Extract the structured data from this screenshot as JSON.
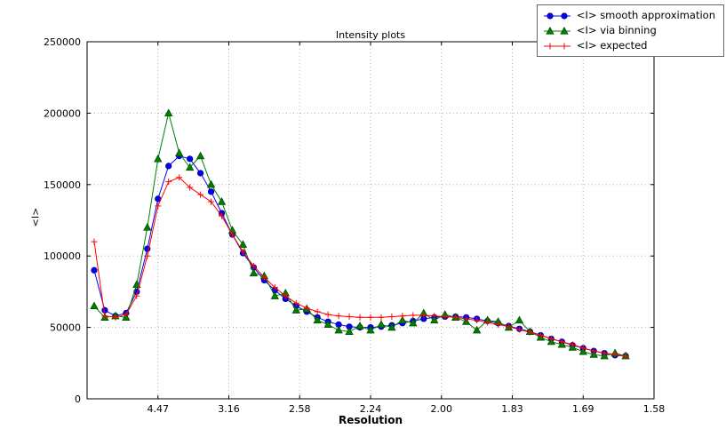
{
  "chart_data": {
    "type": "line",
    "title": "Intensity plots",
    "xlabel": "Resolution",
    "ylabel": "<I>",
    "grid": true,
    "legend_position": "upper right, outside top edge of axes",
    "axis_note": "x axis is linear in 1/d^2 from 0 to 0.4; tick labels give resolution d",
    "xlim": [
      0,
      0.4
    ],
    "ylim": [
      0,
      250000
    ],
    "x_ticks": [
      {
        "pos": 0.05,
        "label": "4.47"
      },
      {
        "pos": 0.1,
        "label": "3.16"
      },
      {
        "pos": 0.15,
        "label": "2.58"
      },
      {
        "pos": 0.2,
        "label": "2.24"
      },
      {
        "pos": 0.25,
        "label": "2.00"
      },
      {
        "pos": 0.3,
        "label": "1.83"
      },
      {
        "pos": 0.35,
        "label": "1.69"
      },
      {
        "pos": 0.4,
        "label": "1.58"
      }
    ],
    "y_ticks": [
      {
        "pos": 0,
        "label": "0"
      },
      {
        "pos": 50000,
        "label": "50000"
      },
      {
        "pos": 100000,
        "label": "100000"
      },
      {
        "pos": 150000,
        "label": "150000"
      },
      {
        "pos": 200000,
        "label": "200000"
      },
      {
        "pos": 250000,
        "label": "250000"
      }
    ],
    "x": [
      0.005,
      0.0125,
      0.02,
      0.0275,
      0.035,
      0.0425,
      0.05,
      0.0575,
      0.065,
      0.0725,
      0.08,
      0.0875,
      0.095,
      0.1025,
      0.11,
      0.1175,
      0.125,
      0.1325,
      0.14,
      0.1475,
      0.155,
      0.1625,
      0.17,
      0.1775,
      0.185,
      0.1925,
      0.2,
      0.2075,
      0.215,
      0.2225,
      0.23,
      0.2375,
      0.245,
      0.2525,
      0.26,
      0.2675,
      0.275,
      0.2825,
      0.29,
      0.2975,
      0.305,
      0.3125,
      0.32,
      0.3275,
      0.335,
      0.3425,
      0.35,
      0.3575,
      0.365,
      0.3725,
      0.38
    ],
    "series": [
      {
        "name": "<I> smooth approximation",
        "color": "#0000ff",
        "edge": "#00008b",
        "marker": "circle",
        "values": [
          90000,
          62000,
          58000,
          60000,
          75000,
          105000,
          140000,
          163000,
          170000,
          168000,
          158000,
          145000,
          130000,
          115000,
          102000,
          92000,
          83000,
          76000,
          70000,
          65000,
          61000,
          57000,
          54000,
          52000,
          50500,
          50000,
          50000,
          50500,
          51500,
          53000,
          54500,
          56000,
          57000,
          57500,
          57500,
          57000,
          56000,
          54500,
          53000,
          51000,
          49000,
          47000,
          44500,
          42000,
          40000,
          37500,
          35500,
          33500,
          32000,
          30500,
          30000
        ]
      },
      {
        "name": "<I> via binning",
        "color": "#008000",
        "edge": "#004d00",
        "marker": "triangle",
        "values": [
          65000,
          57000,
          58000,
          57000,
          80000,
          120000,
          168000,
          200000,
          172000,
          162000,
          170000,
          150000,
          138000,
          118000,
          108000,
          88000,
          86000,
          72000,
          74000,
          62000,
          63000,
          55000,
          52000,
          48000,
          47000,
          51000,
          48000,
          52000,
          50000,
          55000,
          53000,
          60000,
          55000,
          59000,
          57000,
          54000,
          48000,
          55000,
          54000,
          50000,
          55000,
          47000,
          43000,
          40000,
          38000,
          36000,
          33000,
          31000,
          30000,
          32000,
          30000
        ]
      },
      {
        "name": "<I> expected",
        "color": "#ff0000",
        "edge": "#ff0000",
        "marker": "plus",
        "values": [
          110000,
          58000,
          57000,
          59000,
          72000,
          100000,
          135000,
          152000,
          155000,
          148000,
          143000,
          138000,
          128000,
          115000,
          103000,
          93000,
          85000,
          78000,
          72000,
          67000,
          63500,
          61000,
          59000,
          58000,
          57500,
          57000,
          57000,
          57000,
          57500,
          58000,
          58500,
          58500,
          58000,
          57500,
          57000,
          56000,
          55000,
          53500,
          52000,
          50500,
          48500,
          46500,
          44500,
          42000,
          40000,
          38000,
          35500,
          33500,
          32000,
          31000,
          30000
        ]
      }
    ]
  }
}
